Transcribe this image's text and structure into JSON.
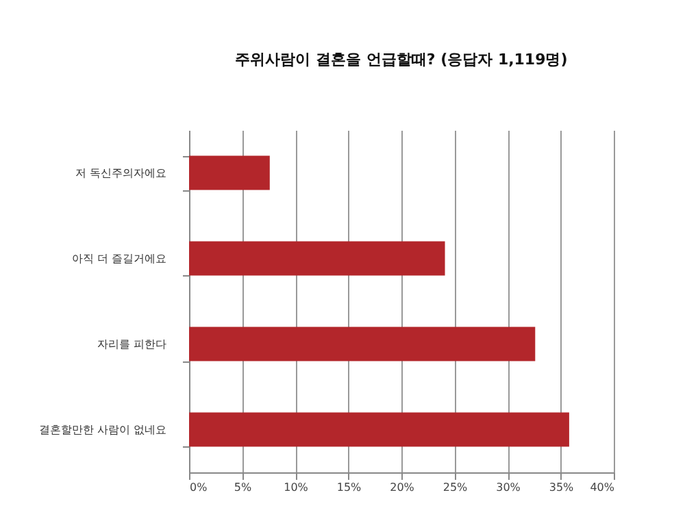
{
  "chart_data": {
    "type": "bar",
    "orientation": "horizontal",
    "title": "주위사람이 결혼을 언급할때? (응답자 1,119명)",
    "categories": [
      "저 독신주의자에요",
      "아직 더 즐길거에요",
      "자리를 피한다",
      "결혼할만한 사람이 없네요"
    ],
    "values": [
      7.6,
      24.1,
      32.6,
      35.8
    ],
    "color": "#b3262b",
    "xlim": [
      0,
      40
    ],
    "xticks": [
      {
        "value": 0,
        "label": "0%"
      },
      {
        "value": 5,
        "label": "5%"
      },
      {
        "value": 10,
        "label": "10%"
      },
      {
        "value": 15,
        "label": "15%"
      },
      {
        "value": 20,
        "label": "20%"
      },
      {
        "value": 25,
        "label": "25%"
      },
      {
        "value": 30,
        "label": "30%"
      },
      {
        "value": 35,
        "label": "35%"
      },
      {
        "value": 40,
        "label": "40%"
      }
    ],
    "grid": "x"
  }
}
